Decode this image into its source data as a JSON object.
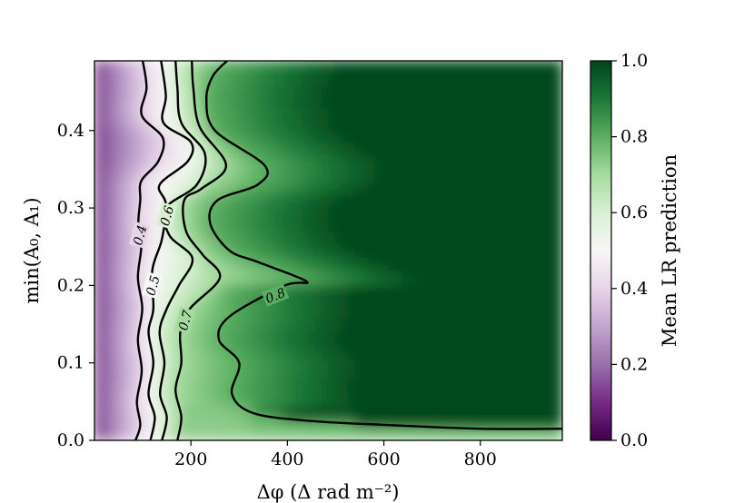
{
  "chart_data": {
    "type": "heatmap",
    "title": "",
    "xlabel": "Δφ (Δ rad m⁻²)",
    "ylabel": "min(A₀, A₁)",
    "colorbar_label": "Mean LR prediction",
    "xlim": [
      0,
      970
    ],
    "ylim": [
      0,
      0.49
    ],
    "colorbar_range": [
      0.0,
      1.0
    ],
    "colormap": [
      "#40004b",
      "#762a83",
      "#9970ab",
      "#c2a5cf",
      "#e7d4e8",
      "#f7f7f7",
      "#d9f0d3",
      "#a6dba0",
      "#5aae61",
      "#1b7837",
      "#00441b"
    ],
    "xticks": [
      "200",
      "400",
      "600",
      "800"
    ],
    "yticks": [
      "0.0",
      "0.1",
      "0.2",
      "0.3",
      "0.4"
    ],
    "colorbar_ticks": [
      "0.0",
      "0.2",
      "0.4",
      "0.6",
      "0.8",
      "1.0"
    ],
    "contour_levels": [
      0.4,
      0.5,
      0.6,
      0.7,
      0.8
    ],
    "contour_labels": [
      "0.4",
      "0.5",
      "0.6",
      "0.7",
      "0.8"
    ],
    "contours": [
      {
        "level": 0.4,
        "label": "0.4",
        "points": [
          [
            85,
            0.0
          ],
          [
            95,
            0.02
          ],
          [
            88,
            0.05
          ],
          [
            98,
            0.09
          ],
          [
            90,
            0.13
          ],
          [
            99,
            0.17
          ],
          [
            90,
            0.21
          ],
          [
            97,
            0.25
          ],
          [
            91,
            0.28
          ],
          [
            95,
            0.31
          ],
          [
            97,
            0.335
          ],
          [
            132,
            0.36
          ],
          [
            142,
            0.39
          ],
          [
            98,
            0.42
          ],
          [
            108,
            0.455
          ],
          [
            100,
            0.49
          ]
        ]
      },
      {
        "level": 0.5,
        "label": "0.5",
        "points": [
          [
            116,
            0.0
          ],
          [
            125,
            0.03
          ],
          [
            112,
            0.06
          ],
          [
            122,
            0.1
          ],
          [
            112,
            0.14
          ],
          [
            122,
            0.17
          ],
          [
            120,
            0.22
          ],
          [
            140,
            0.26
          ],
          [
            148,
            0.305
          ],
          [
            135,
            0.33
          ],
          [
            193,
            0.36
          ],
          [
            200,
            0.385
          ],
          [
            143,
            0.41
          ],
          [
            148,
            0.445
          ],
          [
            138,
            0.49
          ]
        ]
      },
      {
        "level": 0.6,
        "label": "0.6",
        "points": [
          [
            140,
            0.0
          ],
          [
            150,
            0.03
          ],
          [
            136,
            0.06
          ],
          [
            145,
            0.1
          ],
          [
            135,
            0.14
          ],
          [
            150,
            0.17
          ],
          [
            175,
            0.2
          ],
          [
            203,
            0.235
          ],
          [
            155,
            0.265
          ],
          [
            148,
            0.3
          ],
          [
            212,
            0.33
          ],
          [
            229,
            0.37
          ],
          [
            180,
            0.41
          ],
          [
            172,
            0.455
          ],
          [
            168,
            0.49
          ]
        ]
      },
      {
        "level": 0.7,
        "label": "0.7",
        "points": [
          [
            172,
            0.0
          ],
          [
            180,
            0.03
          ],
          [
            168,
            0.065
          ],
          [
            180,
            0.1
          ],
          [
            178,
            0.14
          ],
          [
            198,
            0.17
          ],
          [
            260,
            0.21
          ],
          [
            224,
            0.24
          ],
          [
            190,
            0.27
          ],
          [
            186,
            0.31
          ],
          [
            222,
            0.325
          ],
          [
            273,
            0.355
          ],
          [
            218,
            0.405
          ],
          [
            205,
            0.455
          ],
          [
            202,
            0.49
          ]
        ]
      },
      {
        "level": 0.8,
        "label": "0.8",
        "points": [
          [
            970,
            0.015
          ],
          [
            800,
            0.015
          ],
          [
            600,
            0.02
          ],
          [
            450,
            0.025
          ],
          [
            330,
            0.035
          ],
          [
            285,
            0.06
          ],
          [
            300,
            0.1
          ],
          [
            258,
            0.13
          ],
          [
            280,
            0.16
          ],
          [
            395,
            0.2
          ],
          [
            440,
            0.205
          ],
          [
            340,
            0.23
          ],
          [
            280,
            0.245
          ],
          [
            240,
            0.28
          ],
          [
            255,
            0.31
          ],
          [
            338,
            0.33
          ],
          [
            353,
            0.355
          ],
          [
            250,
            0.4
          ],
          [
            232,
            0.44
          ],
          [
            245,
            0.47
          ],
          [
            275,
            0.49
          ]
        ]
      }
    ]
  }
}
